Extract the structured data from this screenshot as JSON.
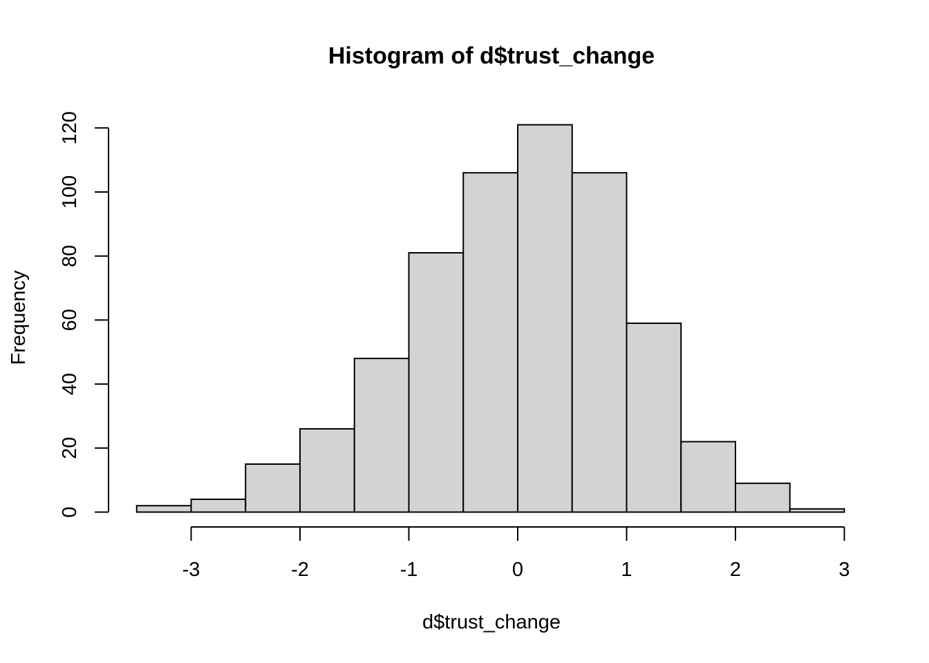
{
  "chart_data": {
    "type": "bar",
    "title": "Histogram of d$trust_change",
    "xlabel": "d$trust_change",
    "ylabel": "Frequency",
    "bins": [
      {
        "from": -3.5,
        "to": -3.0,
        "count": 2
      },
      {
        "from": -3.0,
        "to": -2.5,
        "count": 4
      },
      {
        "from": -2.5,
        "to": -2.0,
        "count": 15
      },
      {
        "from": -2.0,
        "to": -1.5,
        "count": 26
      },
      {
        "from": -1.5,
        "to": -1.0,
        "count": 48
      },
      {
        "from": -1.0,
        "to": -0.5,
        "count": 81
      },
      {
        "from": -0.5,
        "to": 0.0,
        "count": 106
      },
      {
        "from": 0.0,
        "to": 0.5,
        "count": 121
      },
      {
        "from": 0.5,
        "to": 1.0,
        "count": 106
      },
      {
        "from": 1.0,
        "to": 1.5,
        "count": 59
      },
      {
        "from": 1.5,
        "to": 2.0,
        "count": 22
      },
      {
        "from": 2.0,
        "to": 2.5,
        "count": 9
      },
      {
        "from": 2.5,
        "to": 3.0,
        "count": 1
      }
    ],
    "xticks": [
      -3,
      -2,
      -1,
      0,
      1,
      2,
      3
    ],
    "xtick_labels": [
      "-3",
      "-2",
      "-1",
      "0",
      "1",
      "2",
      "3"
    ],
    "yticks": [
      0,
      20,
      40,
      60,
      80,
      100,
      120
    ],
    "ytick_labels": [
      "0",
      "20",
      "40",
      "60",
      "80",
      "100",
      "120"
    ],
    "xlim": [
      -3.5,
      3.0
    ],
    "ylim": [
      0,
      121
    ],
    "grid": false,
    "colors": {
      "bar_fill": "#d3d3d3",
      "bar_stroke": "#000000"
    }
  }
}
